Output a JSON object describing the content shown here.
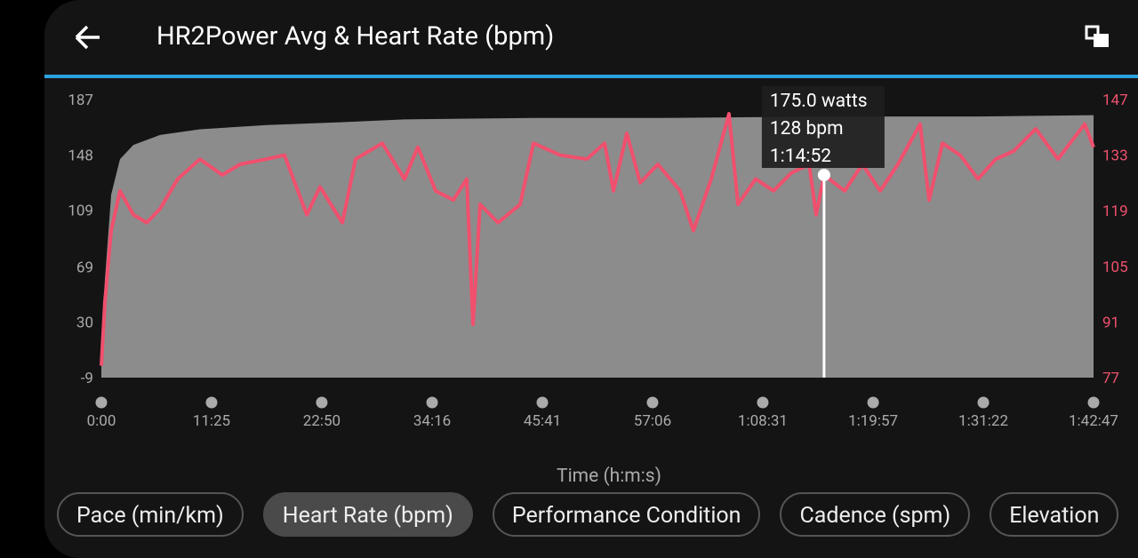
{
  "header": {
    "title": "HR2Power Avg & Heart Rate (bpm)"
  },
  "chart_data": {
    "type": "area-line",
    "xlabel": "Time (h:m:s)",
    "xlim": [
      0,
      6167
    ],
    "xticks": [
      {
        "value": 0,
        "label": "0:00"
      },
      {
        "value": 685,
        "label": "11:25"
      },
      {
        "value": 1370,
        "label": "22:50"
      },
      {
        "value": 2056,
        "label": "34:16"
      },
      {
        "value": 2741,
        "label": "45:41"
      },
      {
        "value": 3426,
        "label": "57:06"
      },
      {
        "value": 4111,
        "label": "1:08:31"
      },
      {
        "value": 4797,
        "label": "1:19:57"
      },
      {
        "value": 5482,
        "label": "1:31:22"
      },
      {
        "value": 6167,
        "label": "1:42:47"
      }
    ],
    "ylim": [
      -9,
      187
    ],
    "yticks": [
      -9,
      30,
      69,
      109,
      148,
      187
    ],
    "y2lim": [
      77,
      147
    ],
    "y2ticks": [
      77,
      91,
      105,
      119,
      133,
      147
    ],
    "series": [
      {
        "color": "#8c8c8c",
        "kind": "area",
        "x": [
          0,
          22,
          61,
          116,
          199,
          365,
          613,
          1028,
          1498,
          1884,
          2686,
          3459,
          4498,
          5449,
          6167
        ],
        "values": [
          0,
          60,
          120,
          145,
          155,
          162,
          166,
          169,
          171,
          173,
          174,
          174,
          175,
          175,
          176
        ]
      },
      {
        "color": "#f0506e",
        "kind": "line",
        "axis": "y2",
        "x": [
          0,
          22,
          61,
          116,
          199,
          282,
          365,
          475,
          613,
          752,
          862,
          1028,
          1138,
          1277,
          1359,
          1498,
          1580,
          1746,
          1884,
          1967,
          2078,
          2188,
          2271,
          2310,
          2354,
          2465,
          2603,
          2686,
          2852,
          3017,
          3128,
          3183,
          3266,
          3349,
          3459,
          3597,
          3680,
          3791,
          3901,
          3957,
          4067,
          4178,
          4288,
          4399,
          4443,
          4492,
          4620,
          4730,
          4841,
          4951,
          5089,
          5145,
          5228,
          5338,
          5449,
          5559,
          5670,
          5808,
          5946,
          6112,
          6167
        ],
        "values": [
          80,
          96,
          114,
          124,
          118,
          116,
          119.5,
          127,
          132,
          128,
          130.7,
          132,
          133,
          118,
          125,
          116,
          132,
          136,
          127,
          135,
          124,
          121.7,
          127,
          90.4,
          120.6,
          116,
          120.6,
          136,
          133,
          132,
          136,
          124,
          138.5,
          126,
          130.7,
          124,
          114,
          127,
          143.4,
          120.6,
          127,
          124,
          128.5,
          130.7,
          118,
          128,
          124,
          130.7,
          124,
          130.7,
          140.8,
          121.7,
          136,
          133,
          127,
          132,
          134,
          139.6,
          132,
          140.8,
          135
        ]
      }
    ],
    "tooltip": {
      "x": {
        "value": 4492,
        "label": "1:14:52"
      },
      "lines": [
        "175.0 watts",
        "128 bpm"
      ]
    }
  },
  "chips": [
    "Pace (min/km)",
    "Heart Rate (bpm)",
    "Performance Condition",
    "Cadence (spm)",
    "Elevation"
  ]
}
